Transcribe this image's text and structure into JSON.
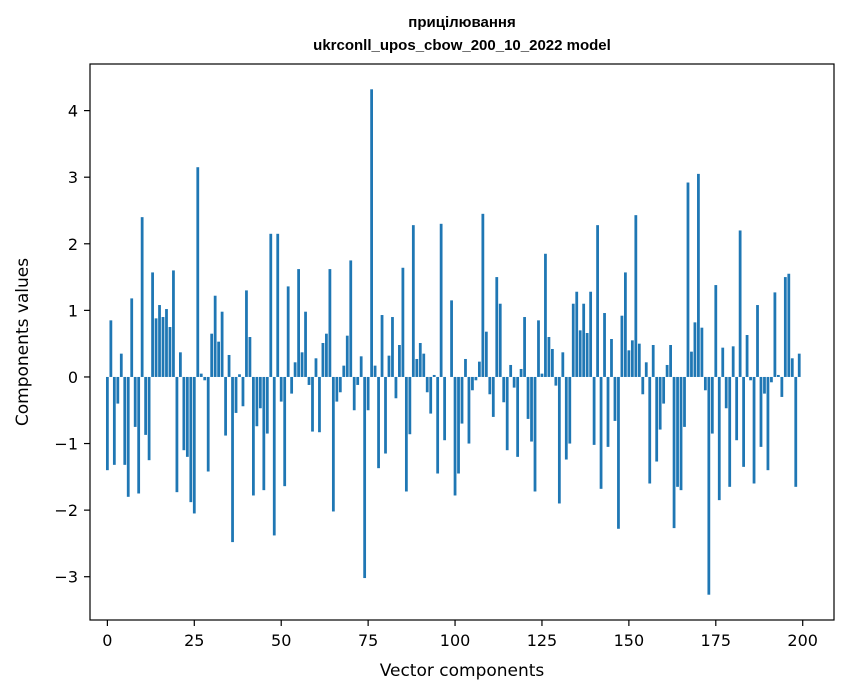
{
  "chart_data": {
    "type": "bar",
    "title": "прицілювання",
    "subtitle": "ukrconll_upos_cbow_200_10_2022 model",
    "xlabel": "Vector components",
    "ylabel": "Components values",
    "xlim": [
      -5,
      209
    ],
    "ylim": [
      -3.65,
      4.7
    ],
    "xticks": [
      0,
      25,
      50,
      75,
      100,
      125,
      150,
      175,
      200
    ],
    "xtick_labels": [
      "0",
      "25",
      "50",
      "75",
      "100",
      "125",
      "150",
      "175",
      "200"
    ],
    "yticks": [
      -3,
      -2,
      -1,
      0,
      1,
      2,
      3,
      4
    ],
    "ytick_labels": [
      "−3",
      "−2",
      "−1",
      "0",
      "1",
      "2",
      "3",
      "4"
    ],
    "grid": false,
    "bar_color": "#1f77b4",
    "x": [
      0,
      1,
      2,
      3,
      4,
      5,
      6,
      7,
      8,
      9,
      10,
      11,
      12,
      13,
      14,
      15,
      16,
      17,
      18,
      19,
      20,
      21,
      22,
      23,
      24,
      25,
      26,
      27,
      28,
      29,
      30,
      31,
      32,
      33,
      34,
      35,
      36,
      37,
      38,
      39,
      40,
      41,
      42,
      43,
      44,
      45,
      46,
      47,
      48,
      49,
      50,
      51,
      52,
      53,
      54,
      55,
      56,
      57,
      58,
      59,
      60,
      61,
      62,
      63,
      64,
      65,
      66,
      67,
      68,
      69,
      70,
      71,
      72,
      73,
      74,
      75,
      76,
      77,
      78,
      79,
      80,
      81,
      82,
      83,
      84,
      85,
      86,
      87,
      88,
      89,
      90,
      91,
      92,
      93,
      94,
      95,
      96,
      97,
      98,
      99,
      100,
      101,
      102,
      103,
      104,
      105,
      106,
      107,
      108,
      109,
      110,
      111,
      112,
      113,
      114,
      115,
      116,
      117,
      118,
      119,
      120,
      121,
      122,
      123,
      124,
      125,
      126,
      127,
      128,
      129,
      130,
      131,
      132,
      133,
      134,
      135,
      136,
      137,
      138,
      139,
      140,
      141,
      142,
      143,
      144,
      145,
      146,
      147,
      148,
      149,
      150,
      151,
      152,
      153,
      154,
      155,
      156,
      157,
      158,
      159,
      160,
      161,
      162,
      163,
      164,
      165,
      166,
      167,
      168,
      169,
      170,
      171,
      172,
      173,
      174,
      175,
      176,
      177,
      178,
      179,
      180,
      181,
      182,
      183,
      184,
      185,
      186,
      187,
      188,
      189,
      190,
      191,
      192,
      193,
      194,
      195,
      196,
      197,
      198,
      199
    ],
    "values": [
      -1.4,
      0.85,
      -1.32,
      -0.4,
      0.35,
      -1.32,
      -1.8,
      1.18,
      -0.75,
      -1.75,
      2.4,
      -0.87,
      -1.25,
      1.57,
      0.88,
      1.08,
      0.9,
      1.02,
      0.75,
      1.6,
      -1.73,
      0.37,
      -1.1,
      -1.2,
      -1.88,
      -2.05,
      3.15,
      0.05,
      -0.05,
      -1.42,
      0.65,
      1.22,
      0.53,
      0.98,
      -0.88,
      0.33,
      -2.48,
      -0.54,
      0.04,
      -0.44,
      1.3,
      0.6,
      -1.78,
      -0.74,
      -0.47,
      -1.7,
      -0.85,
      2.15,
      -2.38,
      2.15,
      -0.37,
      -1.64,
      1.36,
      -0.25,
      0.22,
      1.62,
      0.37,
      0.98,
      -0.12,
      -0.82,
      0.28,
      -0.83,
      0.51,
      0.65,
      1.62,
      -2.02,
      -0.37,
      -0.23,
      0.17,
      0.62,
      1.75,
      -0.5,
      -0.12,
      0.31,
      -3.02,
      -0.5,
      4.32,
      0.17,
      -1.37,
      0.93,
      -1.15,
      0.32,
      0.9,
      -0.32,
      0.48,
      1.64,
      -1.72,
      -0.86,
      2.28,
      0.27,
      0.51,
      0.35,
      -0.23,
      -0.55,
      0.03,
      -1.45,
      2.3,
      -0.95,
      0.0,
      1.15,
      -1.78,
      -1.45,
      -0.7,
      0.27,
      -1.0,
      -0.2,
      -0.05,
      0.23,
      2.45,
      0.68,
      -0.26,
      -0.6,
      1.5,
      1.1,
      -0.38,
      -1.1,
      0.18,
      -0.16,
      -1.2,
      0.12,
      0.9,
      -0.63,
      -0.97,
      -1.72,
      0.85,
      0.05,
      1.85,
      0.6,
      0.42,
      -0.13,
      -1.9,
      0.37,
      -1.24,
      -1.0,
      1.1,
      1.28,
      0.7,
      1.1,
      0.66,
      1.28,
      -1.02,
      2.28,
      -1.68,
      0.96,
      -1.05,
      0.57,
      -0.66,
      -2.28,
      0.92,
      1.57,
      0.4,
      0.55,
      2.43,
      0.5,
      -0.26,
      0.22,
      -1.6,
      0.48,
      -1.27,
      -0.79,
      -0.4,
      0.18,
      0.48,
      -2.27,
      -1.65,
      -1.7,
      -0.75,
      2.92,
      0.38,
      0.82,
      3.05,
      0.74,
      -0.2,
      -3.27,
      -0.85,
      1.38,
      -1.85,
      0.44,
      -0.47,
      -1.65,
      0.46,
      -0.95,
      2.2,
      -1.35,
      0.63,
      -0.05,
      -1.6,
      1.08,
      -1.05,
      -0.25,
      -1.4,
      -0.08,
      1.27,
      0.03,
      -0.3,
      1.5,
      1.55,
      0.28,
      -1.65,
      0.35
    ]
  }
}
